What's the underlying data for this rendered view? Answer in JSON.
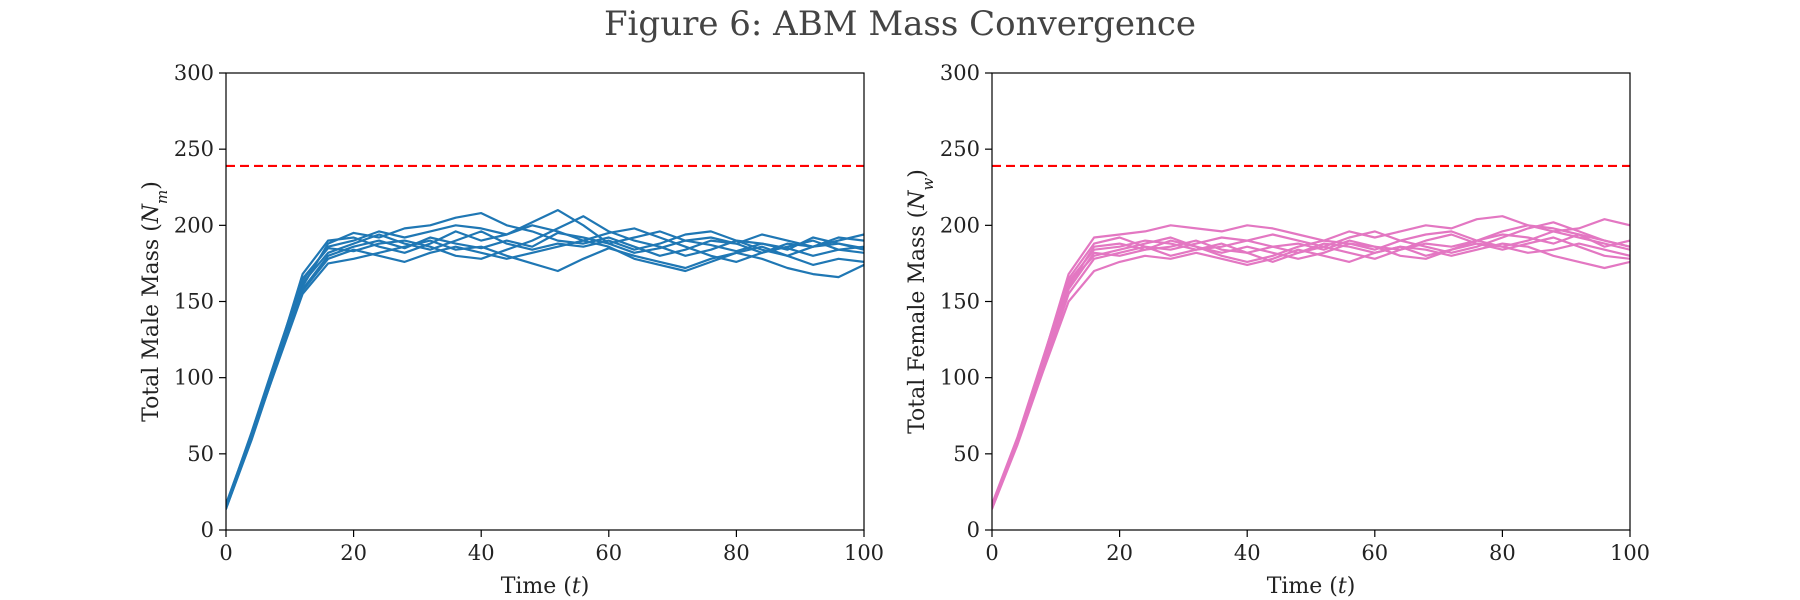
{
  "figure": {
    "title": "Figure 6: ABM Mass Convergence"
  },
  "chart_data": [
    {
      "type": "line",
      "xlabel": "Time (t)",
      "ylabel": "Total Male Mass (N_m)",
      "xlim": [
        0,
        100
      ],
      "ylim": [
        0,
        300
      ],
      "xticks": [
        0,
        20,
        40,
        60,
        80,
        100
      ],
      "yticks": [
        0,
        50,
        100,
        150,
        200,
        250,
        300
      ],
      "color": "#1f77b4",
      "reference_line": {
        "y": 239,
        "style": "dashed",
        "color": "#ff0000"
      },
      "x": [
        0,
        4,
        8,
        12,
        16,
        20,
        24,
        28,
        32,
        36,
        40,
        44,
        48,
        52,
        56,
        60,
        64,
        68,
        72,
        76,
        80,
        84,
        88,
        92,
        96,
        100
      ],
      "series": [
        {
          "values": [
            15,
            62,
            112,
            158,
            180,
            186,
            190,
            185,
            192,
            188,
            185,
            190,
            186,
            195,
            192,
            188,
            182,
            185,
            190,
            187,
            183,
            188,
            185,
            180,
            184,
            186
          ]
        },
        {
          "values": [
            14,
            60,
            110,
            160,
            188,
            195,
            192,
            198,
            200,
            205,
            208,
            200,
            196,
            190,
            188,
            192,
            186,
            180,
            184,
            190,
            188,
            182,
            186,
            190,
            184,
            182
          ]
        },
        {
          "values": [
            16,
            64,
            115,
            165,
            185,
            183,
            188,
            190,
            186,
            180,
            178,
            184,
            190,
            198,
            206,
            196,
            190,
            186,
            180,
            184,
            190,
            188,
            184,
            192,
            188,
            185
          ]
        },
        {
          "values": [
            15,
            61,
            108,
            155,
            175,
            178,
            182,
            186,
            190,
            184,
            186,
            180,
            175,
            170,
            178,
            185,
            180,
            176,
            172,
            178,
            182,
            186,
            180,
            174,
            178,
            176
          ]
        },
        {
          "values": [
            17,
            63,
            113,
            168,
            190,
            192,
            186,
            182,
            188,
            196,
            190,
            194,
            200,
            196,
            190,
            195,
            198,
            192,
            186,
            180,
            176,
            182,
            188,
            186,
            192,
            190
          ]
        },
        {
          "values": [
            14,
            59,
            109,
            162,
            182,
            188,
            194,
            188,
            184,
            190,
            196,
            188,
            184,
            188,
            186,
            190,
            184,
            188,
            194,
            196,
            190,
            184,
            180,
            186,
            190,
            194
          ]
        },
        {
          "values": [
            16,
            62,
            111,
            157,
            178,
            184,
            180,
            176,
            182,
            186,
            182,
            178,
            182,
            186,
            190,
            186,
            178,
            174,
            170,
            176,
            182,
            178,
            172,
            168,
            166,
            174
          ]
        },
        {
          "values": [
            15,
            60,
            112,
            164,
            186,
            190,
            196,
            192,
            196,
            200,
            198,
            194,
            202,
            210,
            200,
            188,
            192,
            196,
            190,
            192,
            188,
            194,
            190,
            186,
            188,
            184
          ]
        }
      ]
    },
    {
      "type": "line",
      "xlabel": "Time (t)",
      "ylabel": "Total Female Mass (N_w)",
      "xlim": [
        0,
        100
      ],
      "ylim": [
        0,
        300
      ],
      "xticks": [
        0,
        20,
        40,
        60,
        80,
        100
      ],
      "yticks": [
        0,
        50,
        100,
        150,
        200,
        250,
        300
      ],
      "color": "#e377c2",
      "reference_line": {
        "y": 239,
        "style": "dashed",
        "color": "#ff0000"
      },
      "x": [
        0,
        4,
        8,
        12,
        16,
        20,
        24,
        28,
        32,
        36,
        40,
        44,
        48,
        52,
        56,
        60,
        64,
        68,
        72,
        76,
        80,
        84,
        88,
        92,
        96,
        100
      ],
      "series": [
        {
          "values": [
            15,
            58,
            108,
            160,
            186,
            188,
            184,
            186,
            190,
            184,
            182,
            186,
            188,
            184,
            190,
            186,
            184,
            188,
            186,
            190,
            194,
            192,
            188,
            194,
            190,
            186
          ]
        },
        {
          "values": [
            16,
            60,
            112,
            168,
            192,
            194,
            196,
            200,
            198,
            196,
            200,
            198,
            194,
            190,
            196,
            192,
            196,
            200,
            198,
            204,
            206,
            200,
            196,
            198,
            204,
            200
          ]
        },
        {
          "values": [
            14,
            57,
            105,
            155,
            178,
            182,
            186,
            180,
            184,
            188,
            182,
            176,
            182,
            188,
            186,
            182,
            186,
            180,
            184,
            188,
            186,
            182,
            184,
            188,
            184,
            180
          ]
        },
        {
          "values": [
            15,
            59,
            110,
            162,
            180,
            184,
            188,
            192,
            186,
            180,
            176,
            180,
            186,
            190,
            188,
            184,
            190,
            194,
            196,
            190,
            186,
            190,
            196,
            192,
            188,
            184
          ]
        },
        {
          "values": [
            17,
            61,
            113,
            165,
            188,
            192,
            186,
            184,
            188,
            192,
            190,
            186,
            182,
            186,
            192,
            196,
            190,
            186,
            182,
            186,
            192,
            198,
            202,
            196,
            190,
            186
          ]
        },
        {
          "values": [
            14,
            56,
            104,
            150,
            170,
            176,
            180,
            178,
            182,
            178,
            174,
            178,
            184,
            180,
            176,
            182,
            186,
            184,
            180,
            184,
            188,
            186,
            180,
            176,
            172,
            176
          ]
        },
        {
          "values": [
            16,
            60,
            111,
            163,
            184,
            186,
            190,
            188,
            184,
            186,
            190,
            194,
            190,
            186,
            182,
            178,
            184,
            190,
            194,
            188,
            184,
            188,
            192,
            186,
            180,
            178
          ]
        },
        {
          "values": [
            15,
            58,
            107,
            158,
            182,
            180,
            184,
            190,
            186,
            182,
            186,
            182,
            178,
            182,
            188,
            186,
            180,
            178,
            184,
            190,
            196,
            200,
            198,
            194,
            186,
            190
          ]
        }
      ]
    }
  ]
}
